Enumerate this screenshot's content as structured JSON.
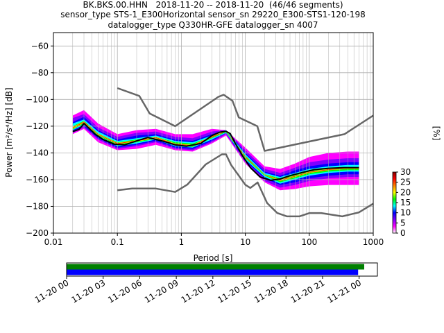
{
  "title_lines": [
    "BK.BKS.00.HHN   2018-11-20 -- 2018-11-20  (46/46 segments)",
    "sensor_type STS-1_E300Horizontal sensor_sn 29220_E300-STS1-120-198",
    "datalogger_type Q330HR-GFE datalogger_sn 4007"
  ],
  "chart_data": [
    {
      "type": "heatmap",
      "xlabel": "Period [s]",
      "ylabel": "Power [m²/s⁴/Hz] [dB]",
      "xscale": "log",
      "xlim": [
        0.01,
        1000
      ],
      "ylim": [
        -200,
        -50
      ],
      "xticks": [
        0.01,
        0.1,
        1,
        10,
        100,
        1000
      ],
      "xtick_labels": [
        "0.01",
        "0.1",
        "1",
        "10",
        "100",
        "1000"
      ],
      "yticks": [
        -200,
        -180,
        -160,
        -140,
        -120,
        -100,
        -80,
        -60
      ],
      "ytick_labels": [
        "−200",
        "−180",
        "−160",
        "−140",
        "−120",
        "−100",
        "−80",
        "−60"
      ],
      "grid": true,
      "colorbar": {
        "label": "[%]",
        "range": [
          0,
          30
        ],
        "ticks": [
          0,
          5,
          10,
          15,
          20,
          25,
          30
        ],
        "tick_labels": [
          "0",
          "5",
          "10",
          "15",
          "20",
          "25",
          "30"
        ],
        "colormap": [
          "#ffffff",
          "#ff00ff",
          "#7f00ff",
          "#0000ff",
          "#00ffff",
          "#00ff00",
          "#ffff00",
          "#ff7f00",
          "#ff0000",
          "#800000"
        ]
      },
      "noise_models": [
        {
          "name": "NHNM",
          "color": "#666666",
          "x": [
            0.1,
            0.22,
            0.32,
            0.8,
            3.8,
            4.6,
            6.3,
            7.9,
            15.4,
            20,
            354.8,
            1000
          ],
          "y": [
            -91.5,
            -97.4,
            -110.5,
            -120,
            -98,
            -96.5,
            -101,
            -113.5,
            -120,
            -138.5,
            -126,
            -112
          ]
        },
        {
          "name": "NLNM",
          "color": "#666666",
          "x": [
            0.1,
            0.17,
            0.4,
            0.8,
            1.24,
            2.4,
            4.3,
            5,
            6,
            10,
            12,
            15.6,
            21.9,
            31.6,
            45,
            70,
            101,
            154,
            328,
            600,
            1000
          ],
          "y": [
            -168,
            -166.7,
            -166.7,
            -169.2,
            -163.7,
            -148.6,
            -141.1,
            -141.1,
            -149,
            -163.8,
            -166.2,
            -162.1,
            -177.5,
            -185,
            -187.5,
            -187.5,
            -185,
            -185,
            -187.5,
            -184.5,
            -178
          ]
        },
        {
          "name": "mode",
          "color": "#000000",
          "x": [
            0.02,
            0.025,
            0.03,
            0.035,
            0.045,
            0.06,
            0.09,
            0.13,
            0.2,
            0.3,
            0.5,
            0.8,
            1.2,
            2,
            3,
            4,
            5,
            5.8,
            7,
            9,
            12,
            17,
            25,
            35,
            50,
            80,
            120,
            200,
            350,
            600
          ],
          "y": [
            -124,
            -122.5,
            -118,
            -121,
            -126,
            -130,
            -133.5,
            -134,
            -131,
            -128.5,
            -131,
            -134,
            -135,
            -133,
            -127,
            -124.5,
            -123.8,
            -125.5,
            -133,
            -142,
            -151,
            -158,
            -160.5,
            -159.5,
            -157,
            -154.5,
            -152.5,
            -151.5,
            -151,
            -151
          ]
        }
      ],
      "pdf_bands": [
        {
          "color": "#ff00ff",
          "x": [
            0.02,
            0.03,
            0.05,
            0.1,
            0.2,
            0.4,
            0.8,
            1.5,
            3,
            5,
            10,
            20,
            35,
            60,
            100,
            200,
            400,
            600
          ],
          "y_low": [
            -126,
            -122,
            -132,
            -138,
            -137,
            -134,
            -138,
            -139,
            -133,
            -127,
            -148,
            -162,
            -168,
            -167,
            -165,
            -164,
            -164,
            -164
          ],
          "y_high": [
            -112,
            -108,
            -118,
            -126,
            -123,
            -122,
            -126,
            -126,
            -122,
            -123,
            -136,
            -150,
            -152,
            -148,
            -143,
            -140,
            -139,
            -139
          ]
        },
        {
          "color": "#7f00ff",
          "x": [
            0.02,
            0.03,
            0.05,
            0.1,
            0.2,
            0.4,
            0.8,
            1.5,
            3,
            5,
            10,
            20,
            35,
            60,
            100,
            200,
            400,
            600
          ],
          "y_low": [
            -125,
            -121,
            -130,
            -137,
            -135,
            -132,
            -137,
            -138,
            -132,
            -126,
            -147,
            -161,
            -166,
            -164,
            -161,
            -159,
            -158,
            -158
          ],
          "y_high": [
            -114,
            -111,
            -121,
            -128,
            -125,
            -124,
            -128,
            -129,
            -124,
            -123,
            -138,
            -152,
            -155,
            -151,
            -147,
            -145,
            -144,
            -144
          ]
        },
        {
          "color": "#0000ff",
          "x": [
            0.02,
            0.03,
            0.05,
            0.1,
            0.2,
            0.4,
            0.8,
            1.5,
            3,
            5,
            10,
            20,
            35,
            60,
            100,
            200,
            400,
            600
          ],
          "y_low": [
            -124,
            -120,
            -129,
            -136,
            -134,
            -131,
            -136,
            -137,
            -131,
            -125,
            -146,
            -159,
            -164,
            -162,
            -159,
            -157,
            -156,
            -156
          ],
          "y_high": [
            -117,
            -113,
            -123,
            -130,
            -127,
            -126,
            -130,
            -131,
            -126,
            -123,
            -140,
            -154,
            -157,
            -153,
            -150,
            -148,
            -147,
            -147
          ]
        },
        {
          "color": "#00ffff",
          "x": [
            0.02,
            0.03,
            0.05,
            0.1,
            0.2,
            0.4,
            0.8,
            1.5,
            3,
            5,
            10,
            20,
            35,
            60,
            100,
            200,
            400,
            600
          ],
          "y_low": [
            -123,
            -119,
            -128,
            -135,
            -133,
            -130,
            -135,
            -136,
            -130,
            -125,
            -145,
            -158,
            -163,
            -160,
            -157,
            -155,
            -154,
            -154
          ],
          "y_high": [
            -118,
            -115,
            -124,
            -131,
            -129,
            -127,
            -131,
            -132,
            -127,
            -123,
            -141,
            -155,
            -158,
            -155,
            -152,
            -150,
            -149,
            -149
          ]
        },
        {
          "color": "#00ff00",
          "x": [
            0.02,
            0.03,
            0.05,
            0.1,
            0.2,
            0.4,
            0.8,
            1.5,
            3,
            5,
            10,
            20,
            35,
            60,
            100,
            200,
            400,
            600
          ],
          "y_low": [
            -122.5,
            -118,
            -127,
            -134.5,
            -132,
            -129.5,
            -134.5,
            -135.5,
            -129,
            -124.5,
            -144,
            -157,
            -162,
            -159,
            -156,
            -154,
            -153,
            -153
          ],
          "y_high": [
            -120,
            -116,
            -125.5,
            -132,
            -130,
            -128,
            -132,
            -133,
            -128,
            -123.5,
            -142,
            -156,
            -159,
            -156,
            -153.5,
            -151.5,
            -151,
            -151
          ]
        },
        {
          "color": "#ffff00",
          "x": [
            0.02,
            0.03,
            0.05,
            0.1,
            0.2,
            0.4,
            0.8,
            1.5,
            3,
            5,
            10,
            20,
            35,
            60,
            100,
            200,
            400,
            600
          ],
          "y_low": [
            -122,
            -117.5,
            -126.5,
            -133.5,
            -131.5,
            -129,
            -134,
            -135,
            -128.5,
            -124,
            -143.5,
            -156.5,
            -161,
            -158,
            -155,
            -153,
            -152,
            -152
          ],
          "y_high": [
            -120.5,
            -116.5,
            -125.5,
            -132.5,
            -130.5,
            -128,
            -133,
            -134,
            -127.5,
            -123.5,
            -142.5,
            -156,
            -160,
            -157,
            -154,
            -152,
            -151.5,
            -151.5
          ]
        },
        {
          "color": "#ff0000",
          "x": [
            0.02,
            0.03,
            0.05,
            0.1,
            0.2,
            0.4,
            0.8,
            1.5,
            3,
            5,
            10,
            20,
            35,
            60,
            100,
            200,
            400,
            600
          ],
          "y_low": [
            -121.5,
            -117.2,
            -126.2,
            -133.3,
            -131.2,
            -128.8,
            -133.7,
            -134.7,
            -128.3,
            -123.9,
            -143.3,
            -156.3,
            -160.7,
            -157.7,
            -154.7,
            -152.7,
            -151.8,
            -151.8
          ],
          "y_high": [
            -121,
            -116.7,
            -125.8,
            -132.8,
            -130.8,
            -128.3,
            -133.3,
            -134.3,
            -127.8,
            -123.6,
            -142.8,
            -156.1,
            -160.3,
            -157.3,
            -154.3,
            -152.3,
            -151.6,
            -151.6
          ]
        }
      ]
    },
    {
      "type": "bar",
      "orientation": "horizontal",
      "x_range": [
        "2018-11-20T00:00",
        "2018-11-21T01:30"
      ],
      "xtick_labels": [
        "11-20 00",
        "11-20 03",
        "11-20 06",
        "11-20 09",
        "11-20 12",
        "11-20 15",
        "11-20 18",
        "11-20 21",
        "11-21 00"
      ],
      "xticks": [
        "2018-11-20T00:00",
        "2018-11-20T03:00",
        "2018-11-20T06:00",
        "2018-11-20T09:00",
        "2018-11-20T12:00",
        "2018-11-20T15:00",
        "2018-11-20T18:00",
        "2018-11-20T21:00",
        "2018-11-21T00:00"
      ],
      "bars": [
        {
          "color": "#008000",
          "start": "2018-11-20T00:00",
          "end": "2018-11-21T00:25"
        },
        {
          "color": "#0000ff",
          "start": "2018-11-20T00:00",
          "end": "2018-11-20T23:55"
        }
      ]
    }
  ]
}
